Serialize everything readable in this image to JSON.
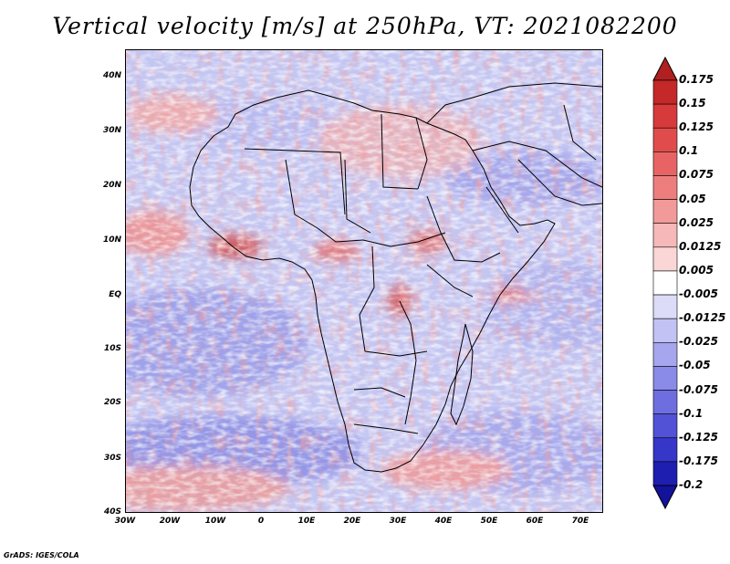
{
  "title": "Vertical velocity [m/s] at 250hPa, VT: 2021082200",
  "footer": "GrADS: IGES/COLA",
  "map": {
    "region": "Africa",
    "lat_labels": [
      "40N",
      "30N",
      "20N",
      "10N",
      "EQ",
      "10S",
      "20S",
      "30S",
      "40S"
    ],
    "lon_labels": [
      "30W",
      "20W",
      "10W",
      "0",
      "10E",
      "20E",
      "30E",
      "40E",
      "50E",
      "60E",
      "70E"
    ]
  },
  "colorbar": {
    "labels": [
      "0.175",
      "0.15",
      "0.125",
      "0.1",
      "0.075",
      "0.05",
      "0.025",
      "0.0125",
      "0.005",
      "-0.005",
      "-0.0125",
      "-0.025",
      "-0.05",
      "-0.075",
      "-0.1",
      "-0.125",
      "-0.175",
      "-0.2"
    ],
    "colors": [
      "#b02020",
      "#c42828",
      "#d63a3a",
      "#e04c4c",
      "#e86464",
      "#ee7e7e",
      "#f29a9a",
      "#f6b8b8",
      "#fad6d6",
      "#ffffff",
      "#dcdcf8",
      "#c2c2f4",
      "#a6a6ee",
      "#8a8ae8",
      "#6e6ee0",
      "#5252d6",
      "#3636c8",
      "#1e1eb0",
      "#12129a"
    ]
  }
}
